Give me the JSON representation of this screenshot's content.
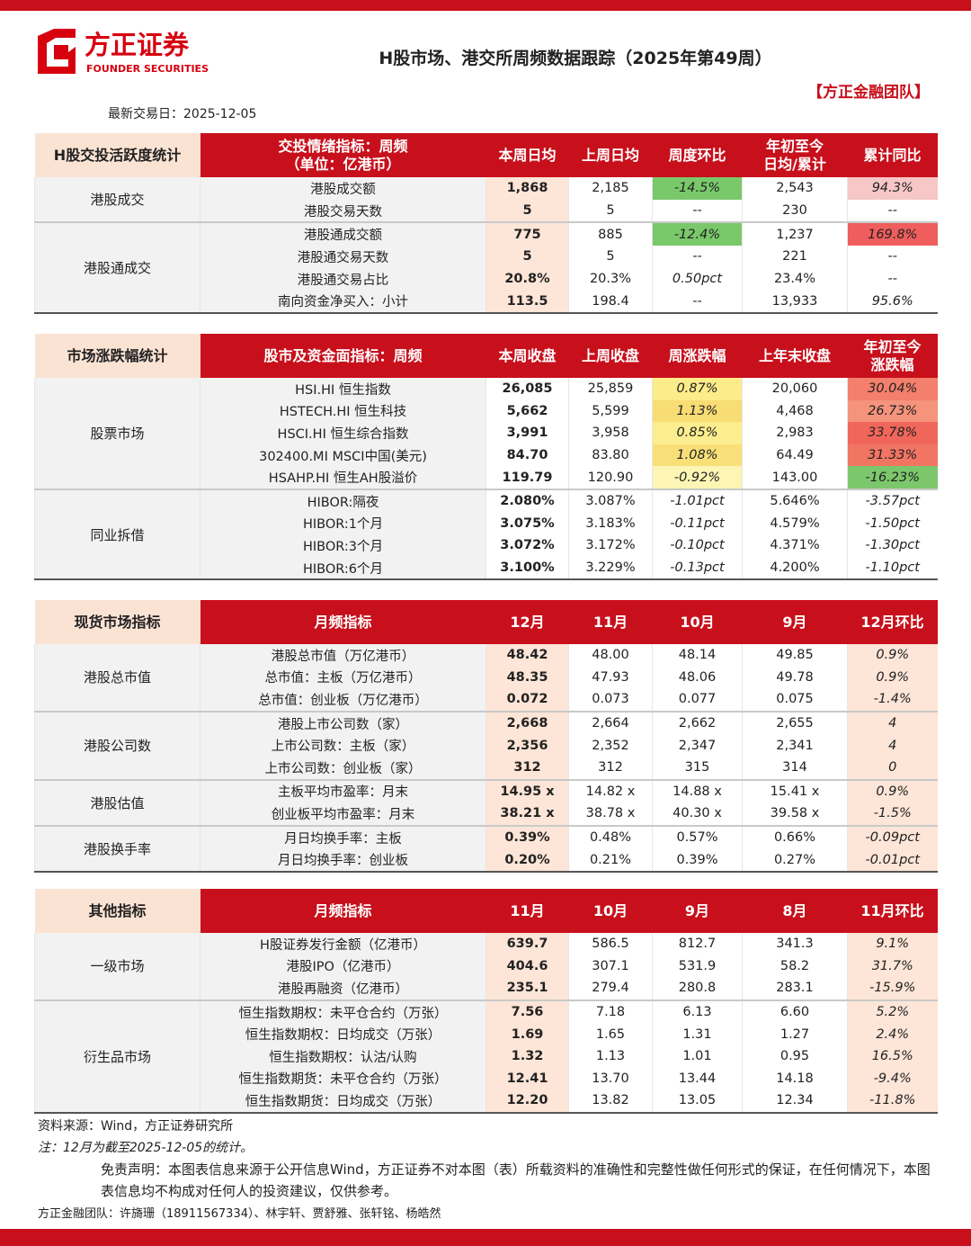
{
  "header": {
    "logo_name": "方正证券",
    "logo_sub": "FOUNDER SECURITIES",
    "title": "H股市场、港交所周频数据跟踪（2025年第49周）",
    "team": "【方正金融团队】",
    "date": "最新交易日：2025-12-05"
  },
  "tables": [
    {
      "header": [
        "H股交投活跃度统计",
        "交投情绪指标：周频\n（单位：亿港币）",
        "本周日均",
        "上周日均",
        "周度环比",
        "年初至今\n日均/累计",
        "累计同比"
      ],
      "groups": [
        {
          "label": "港股成交",
          "rows": [
            {
              "label": "港股成交额",
              "cells": [
                "1,868",
                "2,185",
                "-14.5%",
                "2,543",
                "94.3%"
              ],
              "colors": {
                "2": "#79c96a",
                "4": "#f7c6c6"
              }
            },
            {
              "label": "港股交易天数",
              "cells": [
                "5",
                "5",
                "--",
                "230",
                "--"
              ]
            }
          ]
        },
        {
          "label": "港股通成交",
          "rows": [
            {
              "label": "港股通成交额",
              "cells": [
                "775",
                "885",
                "-12.4%",
                "1,237",
                "169.8%"
              ],
              "colors": {
                "2": "#79c96a",
                "4": "#ef5d5d"
              }
            },
            {
              "label": "港股通交易天数",
              "cells": [
                "5",
                "5",
                "--",
                "221",
                "--"
              ]
            },
            {
              "label": "港股通交易占比",
              "cells": [
                "20.8%",
                "20.3%",
                "0.50pct",
                "23.4%",
                "--"
              ]
            },
            {
              "label": "南向资金净买入：小计",
              "cells": [
                "113.5",
                "198.4",
                "--",
                "13,933",
                "95.6%"
              ]
            }
          ]
        }
      ]
    },
    {
      "header": [
        "市场涨跌幅统计",
        "股市及资金面指标：周频",
        "本周收盘",
        "上周收盘",
        "周涨跌幅",
        "上年末收盘",
        "年初至今\n涨跌幅"
      ],
      "groups": [
        {
          "label": "股票市场",
          "rows": [
            {
              "label": "HSI.HI 恒生指数",
              "cells": [
                "26,085",
                "25,859",
                "0.87%",
                "20,060",
                "30.04%"
              ],
              "colors": {
                "2": "#fcec8a",
                "4": "#f37f6c"
              }
            },
            {
              "label": "HSTECH.HI 恒生科技",
              "cells": [
                "5,662",
                "5,599",
                "1.13%",
                "4,468",
                "26.73%"
              ],
              "colors": {
                "2": "#f8dc74",
                "4": "#f5937c"
              }
            },
            {
              "label": "HSCI.HI 恒生综合指数",
              "cells": [
                "3,991",
                "3,958",
                "0.85%",
                "2,983",
                "33.78%"
              ],
              "colors": {
                "2": "#fcee8e",
                "4": "#f1665b"
              }
            },
            {
              "label": "302400.MI MSCI中国(美元)",
              "cells": [
                "84.70",
                "83.80",
                "1.08%",
                "64.49",
                "31.33%"
              ],
              "colors": {
                "2": "#f9df78",
                "4": "#f27564"
              }
            },
            {
              "label": "HSAHP.HI 恒生AH股溢价",
              "cells": [
                "119.79",
                "120.90",
                "-0.92%",
                "143.00",
                "-16.23%"
              ],
              "colors": {
                "2": "#fdf5b4",
                "4": "#7cc76c"
              }
            }
          ]
        },
        {
          "label": "同业拆借",
          "rows": [
            {
              "label": "HIBOR:隔夜",
              "cells": [
                "2.080%",
                "3.087%",
                "-1.01pct",
                "5.646%",
                "-3.57pct"
              ]
            },
            {
              "label": "HIBOR:1个月",
              "cells": [
                "3.075%",
                "3.183%",
                "-0.11pct",
                "4.579%",
                "-1.50pct"
              ]
            },
            {
              "label": "HIBOR:3个月",
              "cells": [
                "3.072%",
                "3.172%",
                "-0.10pct",
                "4.371%",
                "-1.30pct"
              ]
            },
            {
              "label": "HIBOR:6个月",
              "cells": [
                "3.100%",
                "3.229%",
                "-0.13pct",
                "4.200%",
                "-1.10pct"
              ]
            }
          ]
        }
      ]
    },
    {
      "header": [
        "现货市场指标",
        "月频指标",
        "12月",
        "11月",
        "10月",
        "9月",
        "12月环比"
      ],
      "groups": [
        {
          "label": "港股总市值",
          "rows": [
            {
              "label": "港股总市值（万亿港币）",
              "cells": [
                "48.42",
                "48.00",
                "48.14",
                "49.85",
                "0.9%"
              ]
            },
            {
              "label": "总市值：主板（万亿港币）",
              "cells": [
                "48.35",
                "47.93",
                "48.06",
                "49.78",
                "0.9%"
              ]
            },
            {
              "label": "总市值：创业板（万亿港币）",
              "cells": [
                "0.072",
                "0.073",
                "0.077",
                "0.075",
                "-1.4%"
              ]
            }
          ]
        },
        {
          "label": "港股公司数",
          "rows": [
            {
              "label": "港股上市公司数（家）",
              "cells": [
                "2,668",
                "2,664",
                "2,662",
                "2,655",
                "4"
              ]
            },
            {
              "label": "上市公司数：主板（家）",
              "cells": [
                "2,356",
                "2,352",
                "2,347",
                "2,341",
                "4"
              ]
            },
            {
              "label": "上市公司数：创业板（家）",
              "cells": [
                "312",
                "312",
                "315",
                "314",
                "0"
              ]
            }
          ]
        },
        {
          "label": "港股估值",
          "rows": [
            {
              "label": "主板平均市盈率：月末",
              "cells": [
                "14.95 x",
                "14.82 x",
                "14.88 x",
                "15.41 x",
                "0.9%"
              ]
            },
            {
              "label": "创业板平均市盈率：月末",
              "cells": [
                "38.21 x",
                "38.78 x",
                "40.30 x",
                "39.58 x",
                "-1.5%"
              ]
            }
          ]
        },
        {
          "label": "港股换手率",
          "rows": [
            {
              "label": "月日均换手率：主板",
              "cells": [
                "0.39%",
                "0.48%",
                "0.57%",
                "0.66%",
                "-0.09pct"
              ]
            },
            {
              "label": "月日均换手率：创业板",
              "cells": [
                "0.20%",
                "0.21%",
                "0.39%",
                "0.27%",
                "-0.01pct"
              ]
            }
          ]
        }
      ]
    },
    {
      "header": [
        "其他指标",
        "月频指标",
        "11月",
        "10月",
        "9月",
        "8月",
        "11月环比"
      ],
      "groups": [
        {
          "label": "一级市场",
          "rows": [
            {
              "label": "H股证券发行金额（亿港币）",
              "cells": [
                "639.7",
                "586.5",
                "812.7",
                "341.3",
                "9.1%"
              ]
            },
            {
              "label": "港股IPO（亿港币）",
              "cells": [
                "404.6",
                "307.1",
                "531.9",
                "58.2",
                "31.7%"
              ]
            },
            {
              "label": "港股再融资（亿港币）",
              "cells": [
                "235.1",
                "279.4",
                "280.8",
                "283.1",
                "-15.9%"
              ]
            }
          ]
        },
        {
          "label": "衍生品市场",
          "rows": [
            {
              "label": "恒生指数期权：未平仓合约（万张）",
              "cells": [
                "7.56",
                "7.18",
                "6.13",
                "6.60",
                "5.2%"
              ]
            },
            {
              "label": "恒生指数期权：日均成交（万张）",
              "cells": [
                "1.69",
                "1.65",
                "1.31",
                "1.27",
                "2.4%"
              ]
            },
            {
              "label": "恒生指数期权：认沽/认购",
              "cells": [
                "1.32",
                "1.13",
                "1.01",
                "0.95",
                "16.5%"
              ]
            },
            {
              "label": "恒生指数期货：未平仓合约（万张）",
              "cells": [
                "12.41",
                "13.70",
                "13.44",
                "14.18",
                "-9.4%"
              ]
            },
            {
              "label": "恒生指数期货：日均成交（万张）",
              "cells": [
                "12.20",
                "13.82",
                "13.05",
                "12.34",
                "-11.8%"
              ]
            }
          ]
        }
      ]
    }
  ],
  "footer": {
    "source": "资料来源：Wind，方正证券研究所",
    "note": "注：12月为截至2025-12-05的统计。",
    "disclaimer": "免责声明：本图表信息来源于公开信息Wind，方正证券不对本图（表）所载资料的准确性和完整性做任何形式的保证，在任何情况下，本图表信息均不构成对任何人的投资建议，仅供参考。",
    "team": "方正金融团队：许旖珊（18911567334）、林宇轩、贾舒雅、张轩铭、杨皓然"
  }
}
